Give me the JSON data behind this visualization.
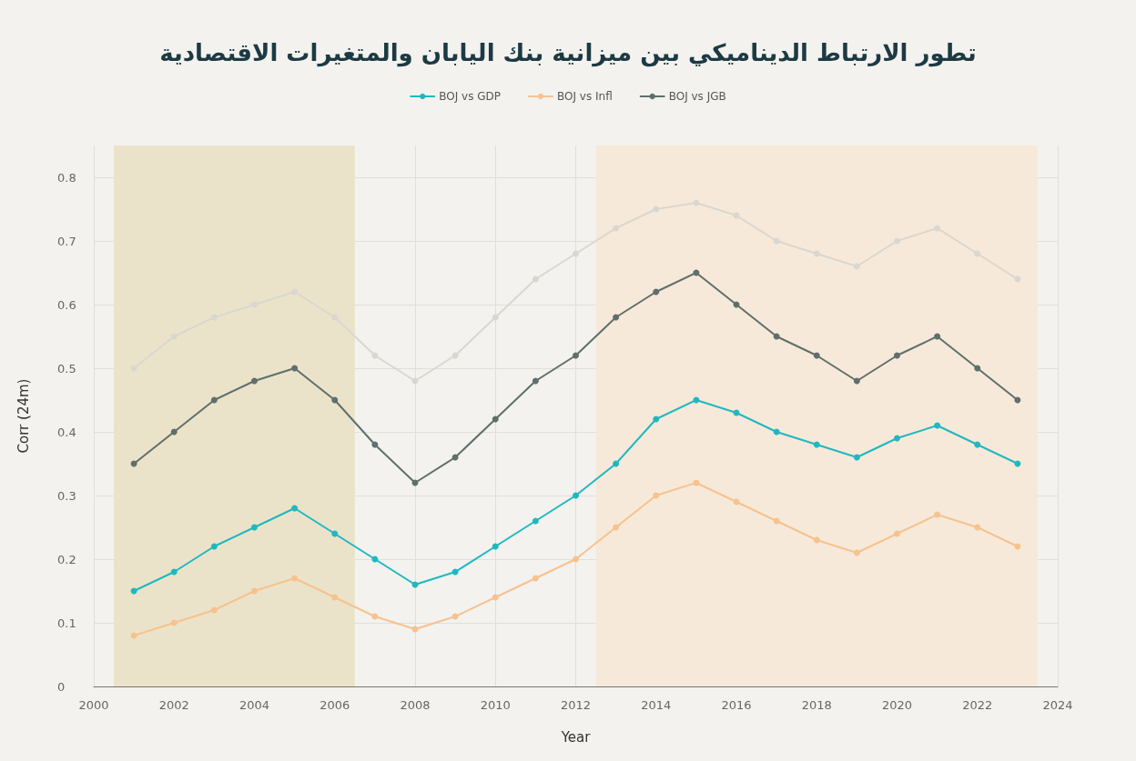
{
  "chart_data": {
    "type": "line",
    "title": "تطور الارتباط الديناميكي بين ميزانية بنك اليابان والمتغيرات الاقتصادية",
    "xlabel": "Year",
    "ylabel": "Corr (24m)",
    "x": [
      2001,
      2002,
      2003,
      2004,
      2005,
      2006,
      2007,
      2008,
      2009,
      2010,
      2011,
      2012,
      2013,
      2014,
      2015,
      2016,
      2017,
      2018,
      2019,
      2020,
      2021,
      2022,
      2023
    ],
    "series": [
      {
        "name": "BOJ vs GDP",
        "color": "#1fb8c1",
        "values": [
          0.15,
          0.18,
          0.22,
          0.25,
          0.28,
          0.24,
          0.2,
          0.16,
          0.18,
          0.22,
          0.26,
          0.3,
          0.35,
          0.42,
          0.45,
          0.43,
          0.4,
          0.38,
          0.36,
          0.39,
          0.41,
          0.38,
          0.35
        ]
      },
      {
        "name": "BOJ vs Infl",
        "color": "#f6c28f",
        "values": [
          0.08,
          0.1,
          0.12,
          0.15,
          0.17,
          0.14,
          0.11,
          0.09,
          0.11,
          0.14,
          0.17,
          0.2,
          0.25,
          0.3,
          0.32,
          0.29,
          0.26,
          0.23,
          0.21,
          0.24,
          0.27,
          0.25,
          0.22
        ]
      },
      {
        "color": "#d9d7d0",
        "values": [
          0.5,
          0.55,
          0.58,
          0.6,
          0.62,
          0.58,
          0.52,
          0.48,
          0.52,
          0.58,
          0.64,
          0.68,
          0.72,
          0.75,
          0.76,
          0.74,
          0.7,
          0.68,
          0.66,
          0.7,
          0.72,
          0.68,
          0.64
        ]
      },
      {
        "name": "BOJ vs JGB",
        "color": "#5f6f6c",
        "values": [
          0.35,
          0.4,
          0.45,
          0.48,
          0.5,
          0.45,
          0.38,
          0.32,
          0.36,
          0.42,
          0.48,
          0.52,
          0.58,
          0.62,
          0.65,
          0.6,
          0.55,
          0.52,
          0.48,
          0.52,
          0.55,
          0.5,
          0.45
        ]
      }
    ],
    "bands": [
      {
        "axis": "x",
        "from": 2000.5,
        "to": 2006.5,
        "color": "#ebe3c9"
      },
      {
        "axis": "x",
        "from": 2012.5,
        "to": 2023.5,
        "color": "#f7e9d9"
      }
    ],
    "xlim": [
      2000,
      2024
    ],
    "xticks": [
      2000,
      2002,
      2004,
      2006,
      2008,
      2010,
      2012,
      2014,
      2016,
      2018,
      2020,
      2022,
      2024
    ],
    "ylim": [
      0,
      0.85
    ],
    "yticks": [
      0,
      0.1,
      0.2,
      0.3,
      0.4,
      0.5,
      0.6,
      0.7,
      0.8
    ],
    "grid": true,
    "legend": "top",
    "marker": "circle",
    "line_style": "solid"
  }
}
